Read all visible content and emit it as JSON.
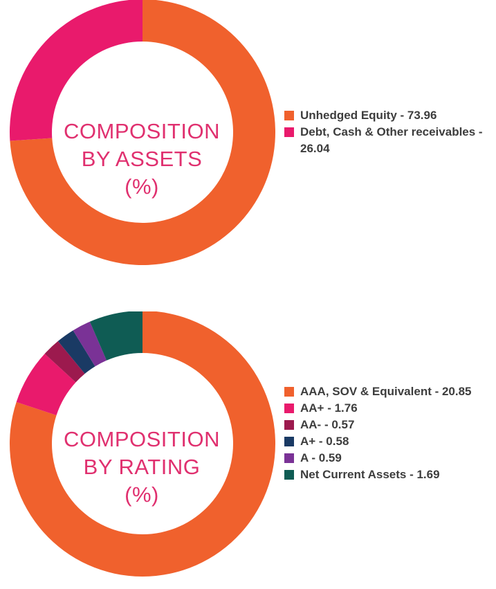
{
  "chart_data": [
    {
      "type": "pie",
      "title_lines": [
        "COMPOSITION",
        "BY ASSETS",
        "(%)"
      ],
      "series": [
        {
          "name": "Unhedged Equity",
          "value": 73.96,
          "color": "#f0612d"
        },
        {
          "name": "Debt, Cash & Other receivables",
          "value": 26.04,
          "color": "#e91a6c"
        }
      ],
      "legend": [
        "Unhedged Equity - 73.96",
        "Debt, Cash & Other receivables - 26.04"
      ],
      "legend_placement": "right"
    },
    {
      "type": "pie",
      "title_lines": [
        "COMPOSITION",
        "BY RATING",
        "(%)"
      ],
      "series": [
        {
          "name": "AAA, SOV & Equivalent",
          "value": 20.85,
          "color": "#f0612d"
        },
        {
          "name": "AA+",
          "value": 1.76,
          "color": "#e91a6c"
        },
        {
          "name": "AA-",
          "value": 0.57,
          "color": "#9c1a4e"
        },
        {
          "name": "A+",
          "value": 0.58,
          "color": "#1a3a64"
        },
        {
          "name": "A",
          "value": 0.59,
          "color": "#7a3296"
        },
        {
          "name": "Net Current Assets",
          "value": 1.69,
          "color": "#0f5c54"
        }
      ],
      "legend": [
        "AAA, SOV & Equivalent - 20.85",
        "AA+ - 1.76",
        "AA- - 0.57",
        "A+ - 0.58",
        "A - 0.59",
        "Net Current Assets - 1.69"
      ],
      "legend_placement": "right"
    }
  ]
}
